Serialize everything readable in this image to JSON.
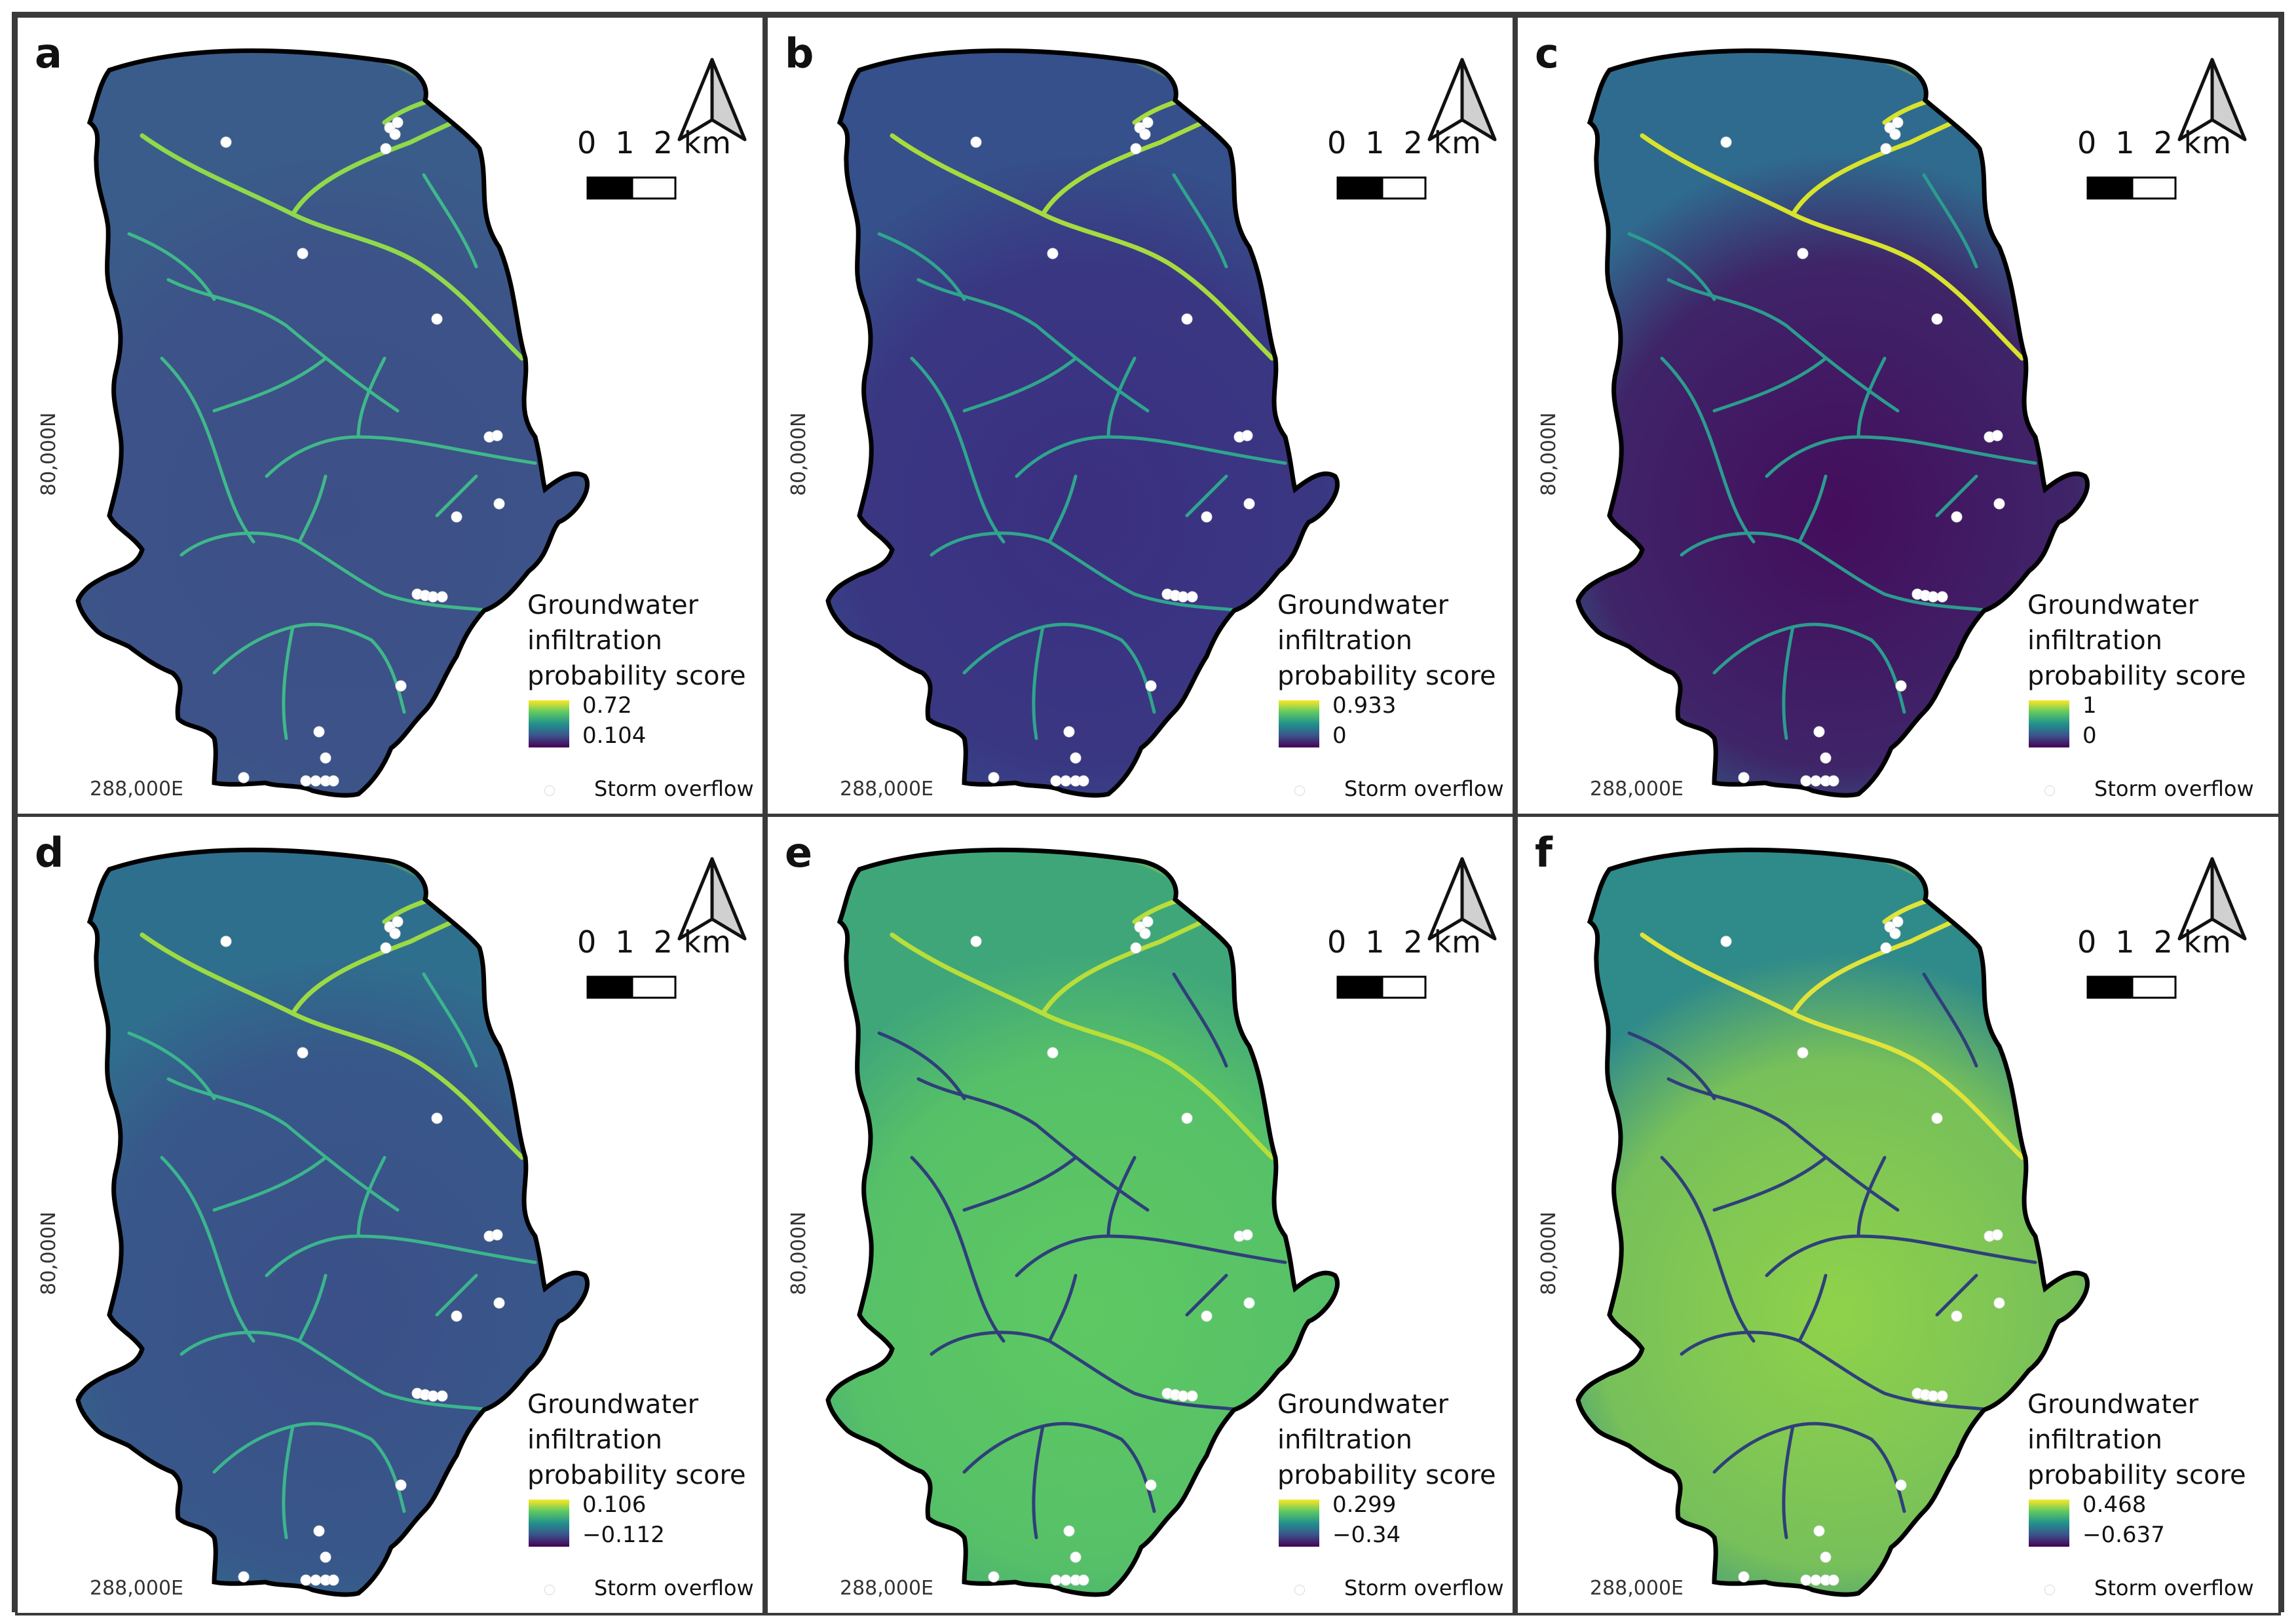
{
  "figure": {
    "panels": [
      {
        "id": "a",
        "legend_title": "Groundwater infiltration probability score",
        "max_label": "0.72",
        "min_label": "0.104",
        "fill_base": "#3a5c8a",
        "fill_zone": "#3d4f87",
        "stream_color": "#3fb88a",
        "stream_hi": "#8fd94a"
      },
      {
        "id": "b",
        "legend_title": "Groundwater infiltration probability score",
        "max_label": "0.933",
        "min_label": "0",
        "fill_base": "#35508a",
        "fill_zone": "#3b2f80",
        "stream_color": "#2fa58d",
        "stream_hi": "#a6db3e"
      },
      {
        "id": "c",
        "legend_title": "Groundwater infiltration probability score",
        "max_label": "1",
        "min_label": "0",
        "fill_base": "#2f6b8e",
        "fill_zone": "#440d5c",
        "stream_color": "#2b9c8e",
        "stream_hi": "#d8e32c"
      },
      {
        "id": "d",
        "legend_title": "Groundwater infiltration probability score",
        "max_label": "0.106",
        "min_label": "−0.112",
        "fill_base": "#2f6f8e",
        "fill_zone": "#3b4f88",
        "stream_color": "#3bb58d",
        "stream_hi": "#9cda44"
      },
      {
        "id": "e",
        "legend_title": "Groundwater infiltration probability score",
        "max_label": "0.299",
        "min_label": "−0.34",
        "fill_base": "#3fa67a",
        "fill_zone": "#5ec962",
        "stream_color": "#2f3f7a",
        "stream_hi": "#b8de3a"
      },
      {
        "id": "f",
        "legend_title": "Groundwater infiltration probability score",
        "max_label": "0.468",
        "min_label": "−0.637",
        "fill_base": "#2f8a8a",
        "fill_zone": "#8fd24a",
        "stream_color": "#2f3f7a",
        "stream_hi": "#e0e33a"
      }
    ],
    "scale_labels": [
      "0",
      "1",
      "2 km"
    ],
    "easting_label": "288,000E",
    "northing_label": "80,000N",
    "legend_symbol_label": "Storm overflow",
    "colormap": [
      "#440154",
      "#3b528b",
      "#21918c",
      "#5ec962",
      "#fde725"
    ]
  }
}
